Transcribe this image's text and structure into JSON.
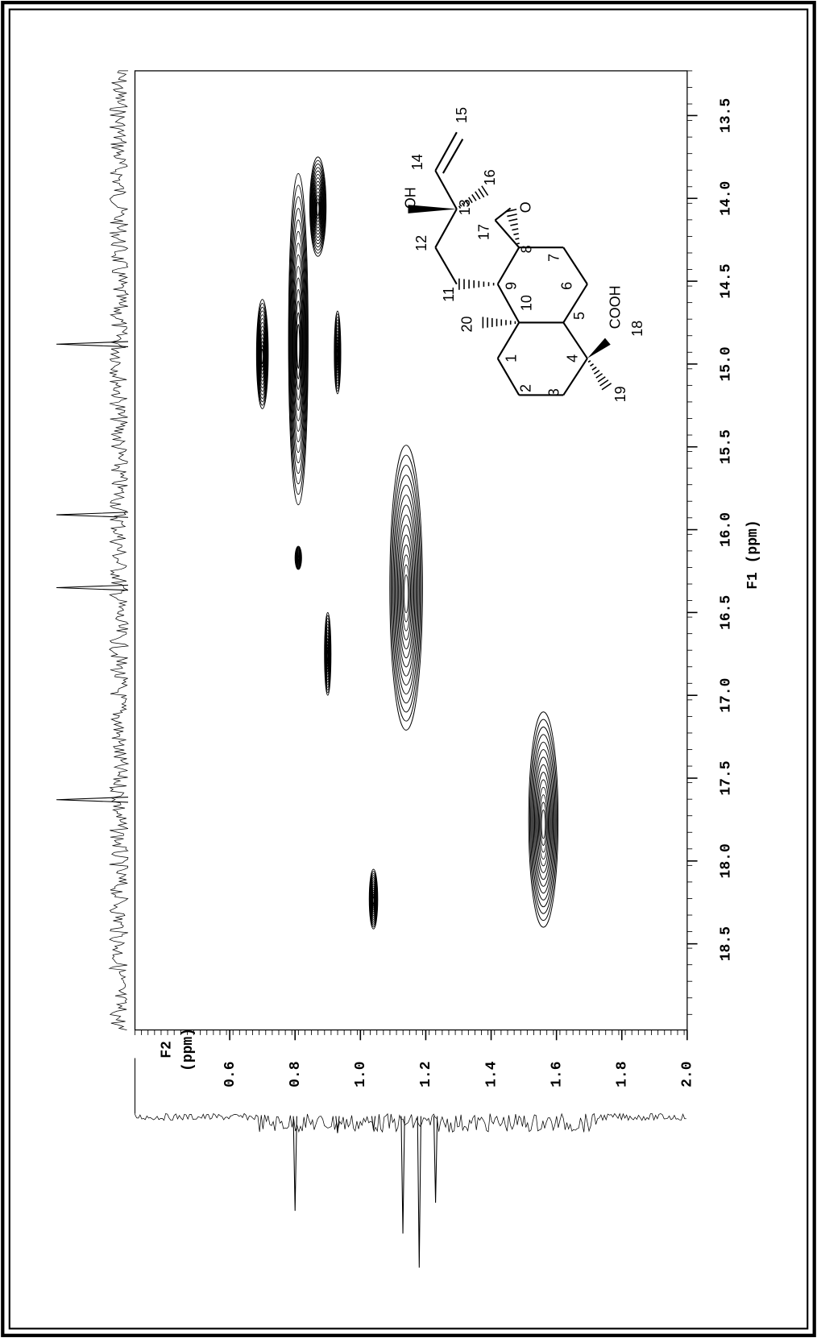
{
  "chart_data": {
    "type": "hsqc",
    "x_label": "F2",
    "x_unit": "(ppm)",
    "y_label": "F1 (ppm)",
    "xlim": [
      0.31,
      2.0
    ],
    "xticks": [
      0.6,
      0.8,
      {
        "value": 1.0,
        "label": "1.0"
      },
      1.2,
      1.4,
      1.6,
      1.8,
      {
        "value": 2.0,
        "label": "2.0"
      }
    ],
    "ylim": [
      13.23,
      19.02
    ],
    "yticks": [
      13.5,
      {
        "value": 14.0,
        "label": "14.0"
      },
      14.5,
      {
        "value": 15.0,
        "label": "15.0"
      },
      15.5,
      {
        "value": 16.0,
        "label": "16.0"
      },
      16.5,
      {
        "value": 17.0,
        "label": "17.0"
      },
      17.5,
      {
        "value": 18.0,
        "label": "18.0"
      },
      18.5
    ],
    "peaks": [
      {
        "x": 0.7,
        "y": 14.94,
        "w": 0.018,
        "h": 0.33
      },
      {
        "x": 0.81,
        "y": 14.85,
        "w": 0.03,
        "h": 1.0
      },
      {
        "x": 0.87,
        "y": 14.05,
        "w": 0.025,
        "h": 0.3
      },
      {
        "x": 0.93,
        "y": 14.93,
        "w": 0.01,
        "h": 0.25
      },
      {
        "x": 0.81,
        "y": 16.17,
        "w": 0.01,
        "h": 0.07
      },
      {
        "x": 0.9,
        "y": 16.75,
        "w": 0.01,
        "h": 0.25
      },
      {
        "x": 1.14,
        "y": 16.35,
        "w": 0.05,
        "h": 0.86
      },
      {
        "x": 1.04,
        "y": 18.23,
        "w": 0.013,
        "h": 0.18
      },
      {
        "x": 1.56,
        "y": 17.75,
        "w": 0.045,
        "h": 0.65
      }
    ],
    "f1_projection": [
      14.88,
      15.91,
      16.35,
      17.63
    ],
    "f2_projection": {
      "ppm": [
        0.8,
        1.13,
        1.18,
        1.23,
        0.93,
        1.04
      ],
      "intensity": [
        0.6,
        0.74,
        0.95,
        0.55,
        0.12,
        0.1
      ]
    },
    "color": "#000000"
  },
  "structure": {
    "labels": [
      "15",
      "14",
      "OH",
      "12",
      "16",
      "13",
      "17",
      "O",
      "11",
      "9",
      "8",
      "7",
      "6",
      "10",
      "20",
      "5",
      "1",
      "4",
      "2",
      "3",
      "COOH",
      "18",
      "19"
    ]
  }
}
